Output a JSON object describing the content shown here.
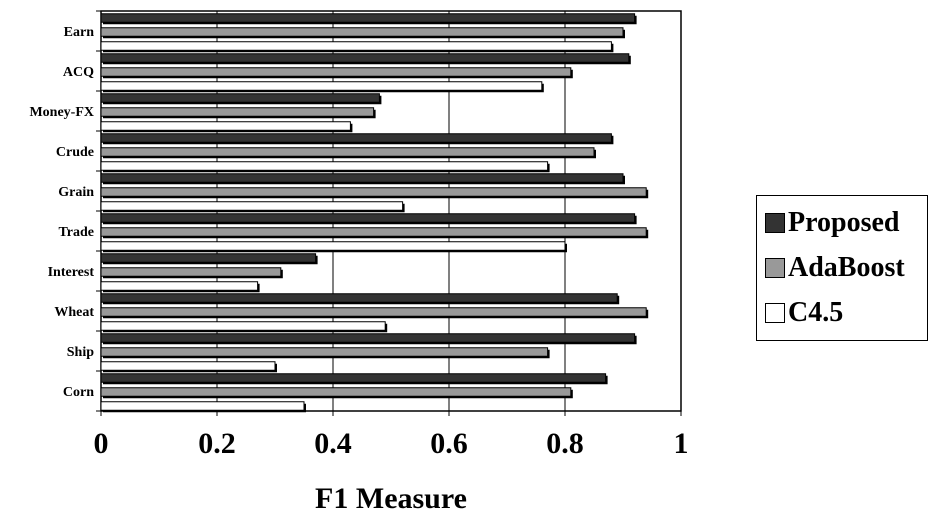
{
  "chart_data": {
    "type": "bar",
    "orientation": "horizontal",
    "xlabel": "F1 Measure",
    "xlim": [
      0,
      1
    ],
    "x_ticks": [
      "0",
      "0.2",
      "0.4",
      "0.6",
      "0.8",
      "1"
    ],
    "grid": "vertical gridlines at 0.2, 0.4, 0.6, 0.8",
    "legend_position": "right",
    "categories": [
      "Earn",
      "ACQ",
      "Money-FX",
      "Crude",
      "Grain",
      "Trade",
      "Interest",
      "Wheat",
      "Ship",
      "Corn"
    ],
    "series": [
      {
        "name": "Proposed",
        "color": "#333333",
        "values": [
          0.92,
          0.91,
          0.48,
          0.88,
          0.9,
          0.92,
          0.37,
          0.89,
          0.92,
          0.87
        ]
      },
      {
        "name": "AdaBoost",
        "color": "#999999",
        "values": [
          0.9,
          0.81,
          0.47,
          0.85,
          0.94,
          0.94,
          0.31,
          0.94,
          0.77,
          0.81
        ]
      },
      {
        "name": "C4.5",
        "color": "#ffffff",
        "values": [
          0.88,
          0.76,
          0.43,
          0.77,
          0.52,
          0.8,
          0.27,
          0.49,
          0.3,
          0.35
        ]
      }
    ]
  }
}
